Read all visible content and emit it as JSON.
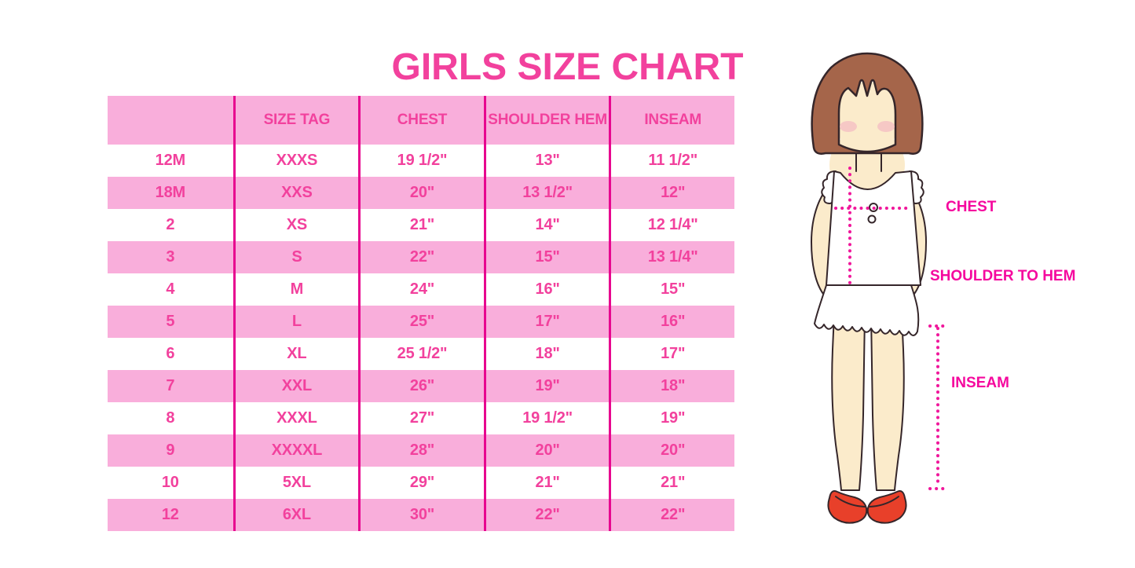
{
  "title": "GIRLS SIZE CHART",
  "colors": {
    "text_pink": "#F2419D",
    "row_pink": "#F9AEDB",
    "line_pink": "#E7078F",
    "label_pink": "#F5089E",
    "hair_brown": "#A5654A",
    "skin": "#FBEBCB",
    "blush": "#F4C2C4",
    "shoe_red": "#E8402A"
  },
  "table": {
    "headers": [
      "",
      "SIZE TAG",
      "CHEST",
      "SHOULDER HEM",
      "INSEAM"
    ],
    "rows": [
      [
        "12M",
        "XXXS",
        "19 1/2\"",
        "13\"",
        "11 1/2\""
      ],
      [
        "18M",
        "XXS",
        "20\"",
        "13 1/2\"",
        "12\""
      ],
      [
        "2",
        "XS",
        "21\"",
        "14\"",
        "12 1/4\""
      ],
      [
        "3",
        "S",
        "22\"",
        "15\"",
        "13 1/4\""
      ],
      [
        "4",
        "M",
        "24\"",
        "16\"",
        "15\""
      ],
      [
        "5",
        "L",
        "25\"",
        "17\"",
        "16\""
      ],
      [
        "6",
        "XL",
        "25 1/2\"",
        "18\"",
        "17\""
      ],
      [
        "7",
        "XXL",
        "26\"",
        "19\"",
        "18\""
      ],
      [
        "8",
        "XXXL",
        "27\"",
        "19 1/2\"",
        "19\""
      ],
      [
        "9",
        "XXXXL",
        "28\"",
        "20\"",
        "20\""
      ],
      [
        "10",
        "5XL",
        "29\"",
        "21\"",
        "21\""
      ],
      [
        "12",
        "6XL",
        "30\"",
        "22\"",
        "22\""
      ]
    ]
  },
  "figure": {
    "labels": {
      "chest": "CHEST",
      "shoulder_to_hem": "SHOULDER TO HEM",
      "inseam": "INSEAM"
    }
  }
}
